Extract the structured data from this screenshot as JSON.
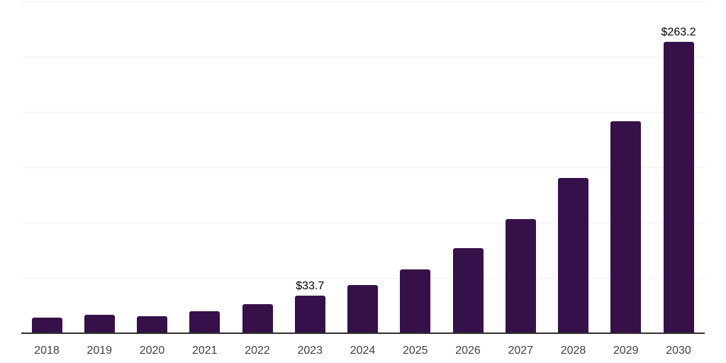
{
  "chart_data": {
    "type": "bar",
    "title": "",
    "xlabel": "",
    "ylabel": "",
    "categories": [
      "2018",
      "2019",
      "2020",
      "2021",
      "2022",
      "2023",
      "2024",
      "2025",
      "2026",
      "2027",
      "2028",
      "2029",
      "2030"
    ],
    "values": [
      14.0,
      16.8,
      15.4,
      19.9,
      26.3,
      33.7,
      43.6,
      57.7,
      76.9,
      103.2,
      140.4,
      191.7,
      263.2
    ],
    "data_labels": {
      "2023": "$33.7",
      "2030": "$263.2"
    },
    "ylim": [
      0,
      300
    ],
    "gridline_step": 50,
    "grid": "horizontal-only",
    "legend": "none",
    "y_axis_labels_visible": false,
    "colors": {
      "bar": "#361149",
      "axis": "#2e2e2e",
      "gridline": "#f0f0f0",
      "tick_label": "#414141",
      "data_label": "#000000",
      "background": "#ffffff"
    }
  }
}
